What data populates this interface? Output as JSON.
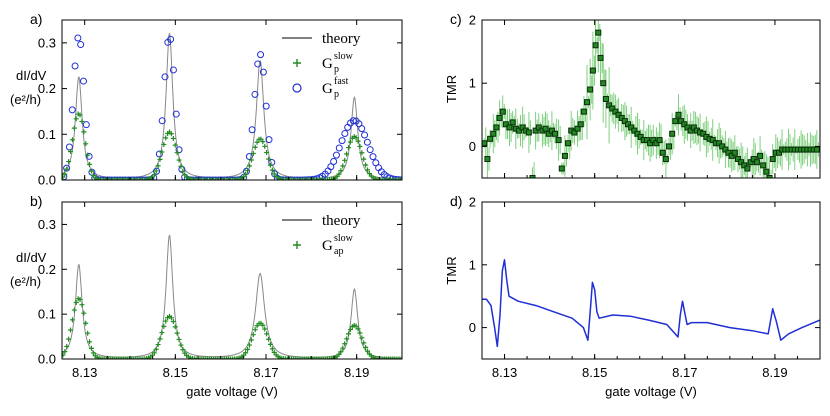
{
  "colors": {
    "theory": "#888888",
    "green": "#228B22",
    "green_band": "#7fd07f",
    "blue": "#1f2fd6",
    "marker_dark": "#0b2a0b",
    "axis": "#000000"
  },
  "chart_data": [
    {
      "panel": "a)",
      "type": "line",
      "ylabel_line1": "dI/dV",
      "ylabel_line2": "(e²/h)",
      "xlim": [
        8.125,
        8.2
      ],
      "ylim": [
        0,
        0.35
      ],
      "yticks": [
        0.0,
        0.1,
        0.2,
        0.3
      ],
      "ytick_labels": [
        "0.0",
        "0.1",
        "0.2",
        "0.3"
      ],
      "peaks": [
        {
          "x0": 8.1287,
          "theory_h": 0.225,
          "slow_h": 0.145,
          "fast_h": 0.315,
          "w_theory": 0.0009,
          "w_slow": 0.0014,
          "w_fast": 0.0012
        },
        {
          "x0": 8.1487,
          "theory_h": 0.32,
          "slow_h": 0.105,
          "fast_h": 0.315,
          "w_theory": 0.0009,
          "w_slow": 0.0016,
          "w_fast": 0.0012
        },
        {
          "x0": 8.1687,
          "theory_h": 0.26,
          "slow_h": 0.09,
          "fast_h": 0.275,
          "w_theory": 0.001,
          "w_slow": 0.0016,
          "w_fast": 0.0013
        },
        {
          "x0": 8.1895,
          "theory_h": 0.18,
          "slow_h": 0.095,
          "fast_h": 0.13,
          "w_theory": 0.0009,
          "w_slow": 0.0017,
          "w_fast": 0.003
        }
      ],
      "legend": [
        {
          "symbol": "line",
          "label": "theory",
          "sub": "",
          "sup": ""
        },
        {
          "symbol": "plus",
          "label": "G",
          "sub": "p",
          "sup": "slow"
        },
        {
          "symbol": "circle",
          "label": "G",
          "sub": "p",
          "sup": "fast"
        }
      ]
    },
    {
      "panel": "b)",
      "type": "line",
      "xlabel": "gate voltage (V)",
      "ylabel_line1": "dI/dV",
      "ylabel_line2": "(e²/h)",
      "xlim": [
        8.125,
        8.2
      ],
      "ylim": [
        0,
        0.35
      ],
      "xticks": [
        8.13,
        8.15,
        8.17,
        8.19
      ],
      "xtick_labels": [
        "8.13",
        "8.15",
        "8.17",
        "8.19"
      ],
      "yticks": [
        0.0,
        0.1,
        0.2,
        0.3
      ],
      "ytick_labels": [
        "0.0",
        "0.1",
        "0.2",
        "0.3"
      ],
      "peaks": [
        {
          "x0": 8.1287,
          "theory_h": 0.21,
          "slow_h": 0.135,
          "w_theory": 0.0009,
          "w_slow": 0.0015
        },
        {
          "x0": 8.1487,
          "theory_h": 0.275,
          "slow_h": 0.095,
          "w_theory": 0.0009,
          "w_slow": 0.0017
        },
        {
          "x0": 8.1687,
          "theory_h": 0.19,
          "slow_h": 0.08,
          "w_theory": 0.0012,
          "w_slow": 0.0017
        },
        {
          "x0": 8.1895,
          "theory_h": 0.155,
          "slow_h": 0.075,
          "w_theory": 0.0009,
          "w_slow": 0.0017
        }
      ],
      "legend": [
        {
          "symbol": "line",
          "label": "theory",
          "sub": "",
          "sup": ""
        },
        {
          "symbol": "plus",
          "label": "G",
          "sub": "ap",
          "sup": "slow"
        }
      ]
    },
    {
      "panel": "c)",
      "type": "scatter",
      "ylabel": "TMR",
      "xlim": [
        8.125,
        8.2
      ],
      "ylim": [
        -0.5,
        2
      ],
      "yticks": [
        0,
        1,
        2
      ],
      "ytick_labels": [
        "0",
        "1",
        "2"
      ],
      "points": [
        [
          8.1255,
          0.05
        ],
        [
          8.1262,
          -0.2
        ],
        [
          8.1268,
          0.12
        ],
        [
          8.1275,
          0.2
        ],
        [
          8.1282,
          0.3
        ],
        [
          8.1289,
          0.45
        ],
        [
          8.1296,
          0.55
        ],
        [
          8.1303,
          0.35
        ],
        [
          8.1311,
          0.3
        ],
        [
          8.1318,
          0.38
        ],
        [
          8.1325,
          0.28
        ],
        [
          8.1332,
          0.25
        ],
        [
          8.134,
          0.3
        ],
        [
          8.1347,
          0.25
        ],
        [
          8.1354,
          0.22
        ],
        [
          8.1362,
          -0.5
        ],
        [
          8.1369,
          0.25
        ],
        [
          8.1376,
          0.3
        ],
        [
          8.1384,
          0.25
        ],
        [
          8.1391,
          0.28
        ],
        [
          8.1398,
          0.2
        ],
        [
          8.1405,
          0.25
        ],
        [
          8.1412,
          0.2
        ],
        [
          8.142,
          0.1
        ],
        [
          8.1427,
          -0.35
        ],
        [
          8.1434,
          -0.15
        ],
        [
          8.1441,
          0.05
        ],
        [
          8.1448,
          0.25
        ],
        [
          8.1455,
          0.22
        ],
        [
          8.1462,
          0.28
        ],
        [
          8.1469,
          0.35
        ],
        [
          8.1476,
          0.55
        ],
        [
          8.1483,
          0.7
        ],
        [
          8.149,
          0.9
        ],
        [
          8.1496,
          1.2
        ],
        [
          8.1502,
          1.6
        ],
        [
          8.1508,
          1.8
        ],
        [
          8.1513,
          1.4
        ],
        [
          8.1519,
          1.0
        ],
        [
          8.1525,
          0.75
        ],
        [
          8.1532,
          0.65
        ],
        [
          8.1539,
          0.6
        ],
        [
          8.1546,
          0.55
        ],
        [
          8.1553,
          0.5
        ],
        [
          8.156,
          0.45
        ],
        [
          8.1567,
          0.4
        ],
        [
          8.1574,
          0.35
        ],
        [
          8.1581,
          0.3
        ],
        [
          8.1588,
          0.25
        ],
        [
          8.1595,
          0.2
        ],
        [
          8.1602,
          0.15
        ],
        [
          8.1609,
          0.1
        ],
        [
          8.1616,
          0.1
        ],
        [
          8.1623,
          0.05
        ],
        [
          8.163,
          0.1
        ],
        [
          8.1637,
          0.05
        ],
        [
          8.1644,
          0.1
        ],
        [
          8.1651,
          -0.1
        ],
        [
          8.1658,
          -0.2
        ],
        [
          8.1665,
          0.0
        ],
        [
          8.1672,
          0.2
        ],
        [
          8.1679,
          0.4
        ],
        [
          8.1686,
          0.5
        ],
        [
          8.1692,
          0.4
        ],
        [
          8.1699,
          0.35
        ],
        [
          8.1706,
          0.3
        ],
        [
          8.1713,
          0.25
        ],
        [
          8.172,
          0.3
        ],
        [
          8.1727,
          0.25
        ],
        [
          8.1734,
          0.22
        ],
        [
          8.1741,
          0.2
        ],
        [
          8.1748,
          0.15
        ],
        [
          8.1755,
          0.12
        ],
        [
          8.1762,
          0.1
        ],
        [
          8.1769,
          0.05
        ],
        [
          8.1776,
          0.05
        ],
        [
          8.1783,
          0.0
        ],
        [
          8.179,
          -0.05
        ],
        [
          8.1797,
          -0.1
        ],
        [
          8.1804,
          -0.15
        ],
        [
          8.1811,
          -0.1
        ],
        [
          8.1818,
          -0.2
        ],
        [
          8.1825,
          -0.25
        ],
        [
          8.1832,
          -0.3
        ],
        [
          8.1839,
          -0.35
        ],
        [
          8.1846,
          -0.25
        ],
        [
          8.1853,
          -0.2
        ],
        [
          8.186,
          -0.25
        ],
        [
          8.1867,
          -0.15
        ],
        [
          8.1874,
          -0.3
        ],
        [
          8.1881,
          -0.4
        ],
        [
          8.1888,
          -0.5
        ],
        [
          8.1895,
          -0.2
        ],
        [
          8.1902,
          -0.1
        ],
        [
          8.1909,
          -0.1
        ],
        [
          8.1916,
          -0.05
        ],
        [
          8.1923,
          -0.05
        ],
        [
          8.193,
          -0.05
        ],
        [
          8.1937,
          -0.05
        ],
        [
          8.1944,
          -0.05
        ],
        [
          8.1951,
          -0.05
        ],
        [
          8.1958,
          -0.05
        ],
        [
          8.1965,
          -0.05
        ],
        [
          8.1972,
          -0.05
        ],
        [
          8.1979,
          -0.05
        ],
        [
          8.1986,
          -0.05
        ],
        [
          8.1993,
          -0.05
        ]
      ]
    },
    {
      "panel": "d)",
      "type": "line",
      "ylabel": "TMR",
      "xlabel": "gate voltage (V)",
      "xlim": [
        8.125,
        8.2
      ],
      "ylim": [
        -0.5,
        2
      ],
      "xticks": [
        8.13,
        8.15,
        8.17,
        8.19
      ],
      "xtick_labels": [
        "8.13",
        "8.15",
        "8.17",
        "8.19"
      ],
      "yticks": [
        0,
        1,
        2
      ],
      "ytick_labels": [
        "0",
        "1",
        "2"
      ],
      "points": [
        [
          8.125,
          0.45
        ],
        [
          8.126,
          0.45
        ],
        [
          8.127,
          0.35
        ],
        [
          8.1278,
          0.0
        ],
        [
          8.1284,
          -0.3
        ],
        [
          8.129,
          0.2
        ],
        [
          8.1295,
          0.9
        ],
        [
          8.13,
          1.08
        ],
        [
          8.1305,
          0.75
        ],
        [
          8.131,
          0.5
        ],
        [
          8.133,
          0.42
        ],
        [
          8.137,
          0.35
        ],
        [
          8.141,
          0.25
        ],
        [
          8.145,
          0.15
        ],
        [
          8.1475,
          0.0
        ],
        [
          8.1485,
          -0.2
        ],
        [
          8.149,
          0.25
        ],
        [
          8.1495,
          0.72
        ],
        [
          8.15,
          0.6
        ],
        [
          8.1505,
          0.25
        ],
        [
          8.151,
          0.15
        ],
        [
          8.154,
          0.2
        ],
        [
          8.158,
          0.18
        ],
        [
          8.162,
          0.12
        ],
        [
          8.166,
          0.05
        ],
        [
          8.1685,
          -0.15
        ],
        [
          8.169,
          0.2
        ],
        [
          8.1695,
          0.42
        ],
        [
          8.1705,
          0.05
        ],
        [
          8.1715,
          0.08
        ],
        [
          8.175,
          0.08
        ],
        [
          8.18,
          0.0
        ],
        [
          8.185,
          -0.05
        ],
        [
          8.1885,
          -0.1
        ],
        [
          8.1895,
          0.3
        ],
        [
          8.1903,
          0.1
        ],
        [
          8.1913,
          -0.2
        ],
        [
          8.193,
          -0.1
        ],
        [
          8.196,
          0.0
        ],
        [
          8.2,
          0.12
        ]
      ]
    }
  ]
}
